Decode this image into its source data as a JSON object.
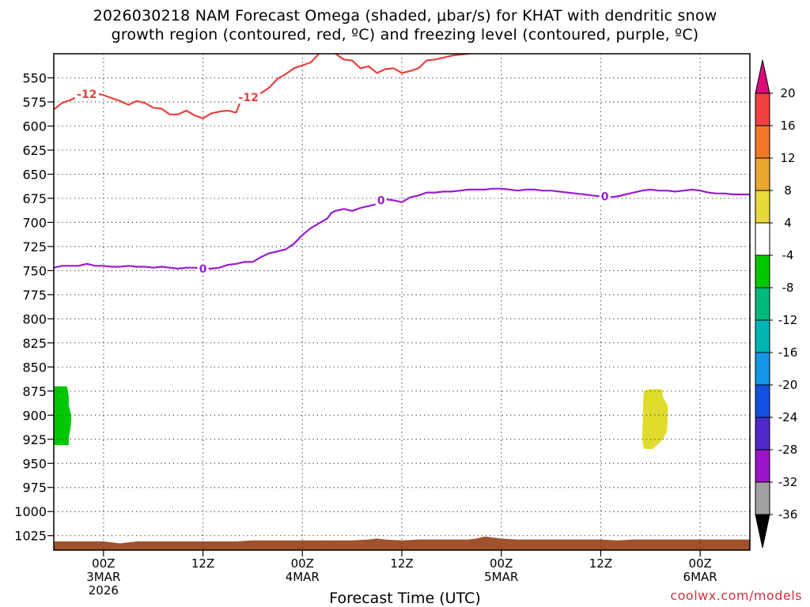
{
  "title_lines": [
    "2026030218 NAM Forecast Omega (shaded, μbar/s) for KHAT with dendritic snow",
    "growth region (contoured, red, ºC) and freezing level (contoured, purple, ºC)"
  ],
  "xlabel": "Forecast Time (UTC)",
  "credit": "coolwx.com/models",
  "chart_data": {
    "type": "contour",
    "x_unit": "hours from 2026-03-02 18Z",
    "xlim": [
      0,
      84
    ],
    "y_unit": "hPa",
    "ylim": [
      1040,
      525
    ],
    "y_ticks": [
      550,
      575,
      600,
      625,
      650,
      675,
      700,
      725,
      750,
      775,
      800,
      825,
      850,
      875,
      900,
      925,
      950,
      975,
      1000,
      1025
    ],
    "x_ticks": [
      {
        "x": 6,
        "lines": [
          "00Z",
          "3MAR",
          "2026"
        ]
      },
      {
        "x": 18,
        "lines": [
          "12Z"
        ]
      },
      {
        "x": 30,
        "lines": [
          "00Z",
          "4MAR"
        ]
      },
      {
        "x": 42,
        "lines": [
          "12Z"
        ]
      },
      {
        "x": 54,
        "lines": [
          "00Z",
          "5MAR"
        ]
      },
      {
        "x": 66,
        "lines": [
          "12Z"
        ]
      },
      {
        "x": 78,
        "lines": [
          "00Z",
          "6MAR"
        ]
      }
    ],
    "grid": "dotted",
    "series": [
      {
        "name": "-12",
        "color": "#e8403c",
        "labels": [
          {
            "x": 4.0,
            "y": 567
          },
          {
            "x": 23.5,
            "y": 570
          }
        ],
        "points": [
          [
            0,
            583
          ],
          [
            1,
            576
          ],
          [
            2,
            573
          ],
          [
            3,
            569
          ],
          [
            4,
            567
          ],
          [
            5,
            566
          ],
          [
            6,
            568
          ],
          [
            7,
            571
          ],
          [
            8,
            574
          ],
          [
            9,
            578
          ],
          [
            10,
            574
          ],
          [
            11,
            576
          ],
          [
            12,
            581
          ],
          [
            13,
            582
          ],
          [
            14,
            588
          ],
          [
            15,
            588
          ],
          [
            16,
            584
          ],
          [
            17,
            589
          ],
          [
            18,
            592
          ],
          [
            19,
            587
          ],
          [
            20,
            585
          ],
          [
            21,
            584
          ],
          [
            22,
            586
          ],
          [
            22.5,
            575
          ],
          [
            24,
            570
          ],
          [
            25,
            566
          ],
          [
            26,
            560
          ],
          [
            27,
            551
          ],
          [
            28,
            546
          ],
          [
            29,
            540
          ],
          [
            30,
            537
          ],
          [
            31,
            534
          ],
          [
            32,
            525
          ],
          [
            33,
            522
          ],
          [
            34,
            525
          ],
          [
            35,
            531
          ],
          [
            36,
            532
          ],
          [
            37,
            540
          ],
          [
            38,
            538
          ],
          [
            39,
            545
          ],
          [
            40,
            541
          ],
          [
            41,
            540
          ],
          [
            42,
            545
          ],
          [
            43,
            543
          ],
          [
            44,
            540
          ],
          [
            45,
            532
          ],
          [
            46,
            531
          ],
          [
            47,
            529
          ],
          [
            48,
            527
          ],
          [
            49,
            526
          ],
          [
            50,
            525
          ],
          [
            51,
            524
          ],
          [
            52,
            522
          ]
        ]
      },
      {
        "name": "0",
        "color": "#9b1ccf",
        "labels": [
          {
            "x": 18,
            "y": 748
          },
          {
            "x": 39.5,
            "y": 677
          },
          {
            "x": 66.5,
            "y": 673
          }
        ],
        "points": [
          [
            0,
            747
          ],
          [
            1,
            745
          ],
          [
            2,
            745
          ],
          [
            3,
            745
          ],
          [
            4,
            743
          ],
          [
            5,
            745
          ],
          [
            6,
            745
          ],
          [
            7,
            746
          ],
          [
            8,
            746
          ],
          [
            9,
            745
          ],
          [
            10,
            746
          ],
          [
            11,
            746
          ],
          [
            12,
            747
          ],
          [
            13,
            746
          ],
          [
            14,
            747
          ],
          [
            15,
            748
          ],
          [
            16,
            747
          ],
          [
            17,
            747
          ],
          [
            18,
            748
          ],
          [
            19,
            748
          ],
          [
            20,
            747
          ],
          [
            21,
            744
          ],
          [
            22,
            743
          ],
          [
            23,
            741
          ],
          [
            24,
            741
          ],
          [
            25,
            736
          ],
          [
            26,
            732
          ],
          [
            27,
            730
          ],
          [
            28,
            728
          ],
          [
            29,
            722
          ],
          [
            30,
            713
          ],
          [
            31,
            706
          ],
          [
            32,
            701
          ],
          [
            33,
            696
          ],
          [
            33.5,
            690
          ],
          [
            34,
            688
          ],
          [
            35,
            686
          ],
          [
            36,
            688
          ],
          [
            37,
            685
          ],
          [
            38,
            683
          ],
          [
            39,
            681
          ],
          [
            40,
            676
          ],
          [
            41,
            677
          ],
          [
            42,
            679
          ],
          [
            43,
            674
          ],
          [
            44,
            672
          ],
          [
            45,
            669
          ],
          [
            46,
            669
          ],
          [
            47,
            668
          ],
          [
            48,
            668
          ],
          [
            49,
            667
          ],
          [
            50,
            666
          ],
          [
            51,
            666
          ],
          [
            52,
            666
          ],
          [
            53,
            665
          ],
          [
            54,
            665
          ],
          [
            55,
            666
          ],
          [
            56,
            667
          ],
          [
            57,
            666
          ],
          [
            58,
            666
          ],
          [
            59,
            667
          ],
          [
            60,
            667
          ],
          [
            61,
            668
          ],
          [
            62,
            669
          ],
          [
            63,
            670
          ],
          [
            64,
            671
          ],
          [
            65,
            672
          ],
          [
            66,
            673
          ],
          [
            67,
            674
          ],
          [
            68,
            673
          ],
          [
            69,
            671
          ],
          [
            70,
            669
          ],
          [
            71,
            667
          ],
          [
            72,
            666
          ],
          [
            73,
            667
          ],
          [
            74,
            667
          ],
          [
            75,
            668
          ],
          [
            76,
            667
          ],
          [
            77,
            666
          ],
          [
            78,
            667
          ],
          [
            79,
            669
          ],
          [
            80,
            670
          ],
          [
            81,
            670
          ],
          [
            82,
            671
          ],
          [
            83,
            671
          ],
          [
            84,
            671
          ]
        ]
      }
    ],
    "shaded_regions": [
      {
        "name": "omega -8 to -4",
        "color": "#00c800",
        "points": [
          [
            0,
            870
          ],
          [
            1.6,
            870
          ],
          [
            1.8,
            880
          ],
          [
            1.8,
            890
          ],
          [
            2.1,
            900
          ],
          [
            2.1,
            905
          ],
          [
            2.0,
            915
          ],
          [
            1.8,
            922
          ],
          [
            1.8,
            931
          ],
          [
            0,
            931
          ]
        ]
      },
      {
        "name": "omega 4 to 8",
        "color": "#e0dc2c",
        "points": [
          [
            71.2,
            875
          ],
          [
            71.9,
            873
          ],
          [
            73.4,
            873
          ],
          [
            73.5,
            881
          ],
          [
            74.1,
            890
          ],
          [
            74.1,
            900
          ],
          [
            74.0,
            917
          ],
          [
            73.5,
            925
          ],
          [
            72.3,
            935
          ],
          [
            71.2,
            935
          ],
          [
            71.0,
            925
          ],
          [
            71.1,
            900
          ],
          [
            71.1,
            888
          ]
        ]
      },
      {
        "name": "ground",
        "color": "#a0522d",
        "points": [
          [
            0,
            1031
          ],
          [
            2,
            1031
          ],
          [
            4,
            1031
          ],
          [
            5,
            1031
          ],
          [
            6,
            1031
          ],
          [
            7,
            1032
          ],
          [
            8,
            1033
          ],
          [
            9,
            1032
          ],
          [
            10,
            1031
          ],
          [
            12,
            1031
          ],
          [
            14,
            1031
          ],
          [
            16,
            1031
          ],
          [
            18,
            1031
          ],
          [
            20,
            1031
          ],
          [
            22,
            1031
          ],
          [
            24,
            1030
          ],
          [
            26,
            1030
          ],
          [
            28,
            1030
          ],
          [
            30,
            1030
          ],
          [
            32,
            1030
          ],
          [
            34,
            1030
          ],
          [
            36,
            1030
          ],
          [
            38,
            1029
          ],
          [
            39,
            1028
          ],
          [
            40,
            1029
          ],
          [
            42,
            1030
          ],
          [
            44,
            1029
          ],
          [
            46,
            1029
          ],
          [
            48,
            1029
          ],
          [
            50,
            1029
          ],
          [
            51,
            1028
          ],
          [
            52,
            1026
          ],
          [
            53,
            1027
          ],
          [
            54,
            1028
          ],
          [
            56,
            1029
          ],
          [
            58,
            1029
          ],
          [
            60,
            1029
          ],
          [
            62,
            1029
          ],
          [
            64,
            1029
          ],
          [
            66,
            1029
          ],
          [
            68,
            1030
          ],
          [
            70,
            1029
          ],
          [
            72,
            1029
          ],
          [
            74,
            1029
          ],
          [
            76,
            1029
          ],
          [
            78,
            1029
          ],
          [
            80,
            1029
          ],
          [
            82,
            1029
          ],
          [
            84,
            1029
          ],
          [
            84,
            1040
          ],
          [
            0,
            1040
          ]
        ]
      }
    ],
    "colorbar": {
      "orientation": "vertical",
      "over_color": "#dc0a7a",
      "under_color": "#000000",
      "ticks": [
        "20",
        "16",
        "12",
        "8",
        "4",
        "-4",
        "-8",
        "-12",
        "-16",
        "-20",
        "-24",
        "-28",
        "-32",
        "-36"
      ],
      "colors": [
        "#f04040",
        "#f07828",
        "#e8a830",
        "#e8d83c",
        "#ffffff",
        "#00c800",
        "#00b87c",
        "#00b4b4",
        "#1496e6",
        "#1450e0",
        "#5028c8",
        "#9a14c8",
        "#a0a0a0"
      ]
    }
  }
}
